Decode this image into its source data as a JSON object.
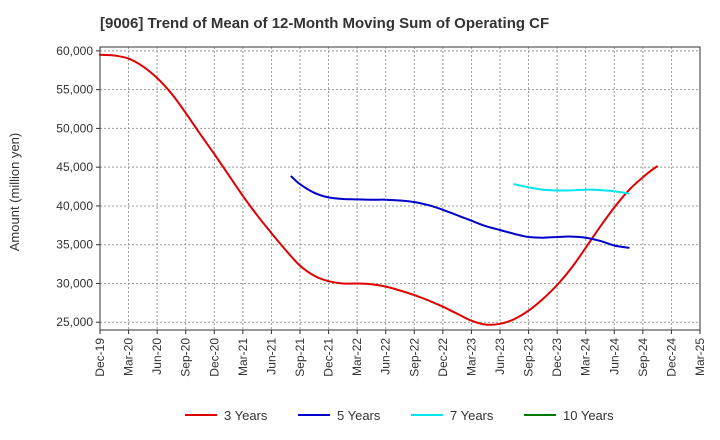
{
  "chart_data": {
    "type": "line",
    "title": "[9006]  Trend of Mean of 12-Month Moving Sum of Operating CF",
    "xlabel": "",
    "ylabel": "Amount (million yen)",
    "ylim": [
      24000,
      60500
    ],
    "yticks": [
      25000,
      30000,
      35000,
      40000,
      45000,
      50000,
      55000,
      60000
    ],
    "ytick_labels": [
      "25,000",
      "30,000",
      "35,000",
      "40,000",
      "45,000",
      "50,000",
      "55,000",
      "60,000"
    ],
    "x_categories": [
      "Dec-19",
      "Mar-20",
      "Jun-20",
      "Sep-20",
      "Dec-20",
      "Mar-21",
      "Jun-21",
      "Sep-21",
      "Dec-21",
      "Mar-22",
      "Jun-22",
      "Sep-22",
      "Dec-22",
      "Mar-23",
      "Jun-23",
      "Sep-23",
      "Dec-23",
      "Mar-24",
      "Jun-24",
      "Sep-24",
      "Dec-24",
      "Mar-25"
    ],
    "grid": true,
    "legend_position": "bottom",
    "series": [
      {
        "name": "3 Years",
        "color": "#e00000",
        "points": [
          [
            0,
            59500
          ],
          [
            0.5,
            59400
          ],
          [
            1,
            59000
          ],
          [
            1.5,
            58000
          ],
          [
            2,
            56500
          ],
          [
            2.5,
            54500
          ],
          [
            3,
            52000
          ],
          [
            3.5,
            49300
          ],
          [
            4,
            46700
          ],
          [
            4.5,
            44000
          ],
          [
            5,
            41300
          ],
          [
            5.5,
            38800
          ],
          [
            6,
            36500
          ],
          [
            6.5,
            34300
          ],
          [
            7,
            32300
          ],
          [
            7.5,
            31000
          ],
          [
            8,
            30300
          ],
          [
            8.5,
            30000
          ],
          [
            9,
            30000
          ],
          [
            9.5,
            29900
          ],
          [
            10,
            29600
          ],
          [
            10.5,
            29100
          ],
          [
            11,
            28500
          ],
          [
            11.5,
            27800
          ],
          [
            12,
            27000
          ],
          [
            12.5,
            26100
          ],
          [
            13,
            25200
          ],
          [
            13.5,
            24700
          ],
          [
            14,
            24800
          ],
          [
            14.5,
            25400
          ],
          [
            15,
            26500
          ],
          [
            15.5,
            28000
          ],
          [
            16,
            29800
          ],
          [
            16.5,
            32000
          ],
          [
            17,
            34600
          ],
          [
            17.5,
            37300
          ],
          [
            18,
            39800
          ],
          [
            18.5,
            42000
          ],
          [
            19,
            43700
          ],
          [
            19.3,
            44600
          ],
          [
            19.5,
            45100
          ]
        ]
      },
      {
        "name": "5 Years",
        "color": "#0000cc",
        "points": [
          [
            6.7,
            43800
          ],
          [
            7,
            42800
          ],
          [
            7.5,
            41700
          ],
          [
            8,
            41100
          ],
          [
            8.5,
            40900
          ],
          [
            9,
            40850
          ],
          [
            9.5,
            40800
          ],
          [
            10,
            40800
          ],
          [
            10.5,
            40700
          ],
          [
            11,
            40500
          ],
          [
            11.5,
            40100
          ],
          [
            12,
            39500
          ],
          [
            12.5,
            38800
          ],
          [
            13,
            38100
          ],
          [
            13.5,
            37400
          ],
          [
            14,
            36900
          ],
          [
            14.5,
            36400
          ],
          [
            15,
            36000
          ],
          [
            15.5,
            35900
          ],
          [
            16,
            36000
          ],
          [
            16.5,
            36050
          ],
          [
            17,
            35900
          ],
          [
            17.5,
            35500
          ],
          [
            18,
            34900
          ],
          [
            18.5,
            34600
          ]
        ]
      },
      {
        "name": "7 Years",
        "color": "#00e5ee",
        "points": [
          [
            14.5,
            42800
          ],
          [
            15,
            42400
          ],
          [
            15.5,
            42100
          ],
          [
            16,
            42000
          ],
          [
            16.5,
            42000
          ],
          [
            17,
            42100
          ],
          [
            17.5,
            42050
          ],
          [
            18,
            41900
          ],
          [
            18.5,
            41600
          ]
        ]
      },
      {
        "name": "10 Years",
        "color": "#007a00",
        "points": []
      }
    ]
  }
}
